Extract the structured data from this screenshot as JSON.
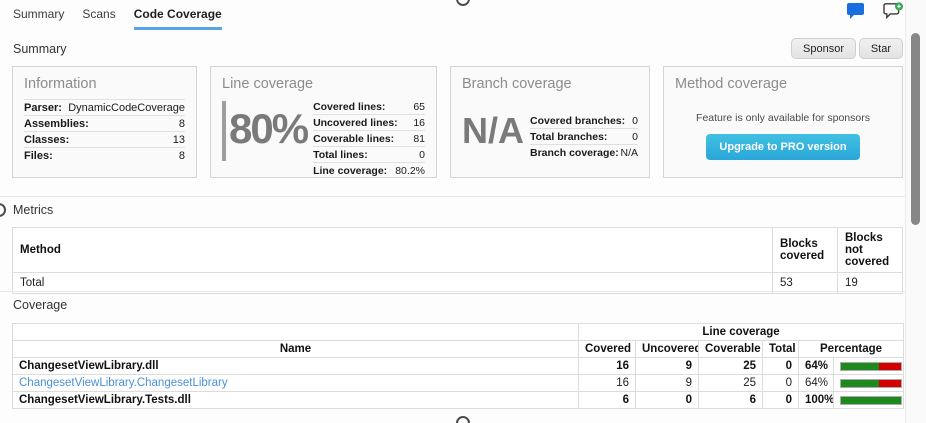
{
  "tabs": {
    "items": [
      {
        "label": "Summary"
      },
      {
        "label": "Scans"
      },
      {
        "label": "Code Coverage"
      }
    ],
    "active_index": 2
  },
  "header": {
    "icons": [
      {
        "name": "chat-filled-icon"
      },
      {
        "name": "chat-add-icon"
      }
    ]
  },
  "summary": {
    "title": "Summary",
    "sponsor_label": "Sponsor",
    "star_label": "Star"
  },
  "cards": {
    "information": {
      "title": "Information",
      "rows": [
        {
          "label": "Parser:",
          "value": "DynamicCodeCoverage"
        },
        {
          "label": "Assemblies:",
          "value": "8"
        },
        {
          "label": "Classes:",
          "value": "13"
        },
        {
          "label": "Files:",
          "value": "8"
        }
      ]
    },
    "line_coverage": {
      "title": "Line coverage",
      "big_value": "80%",
      "rows": [
        {
          "label": "Covered lines:",
          "value": "65"
        },
        {
          "label": "Uncovered lines:",
          "value": "16"
        },
        {
          "label": "Coverable lines:",
          "value": "81"
        },
        {
          "label": "Total lines:",
          "value": "0"
        },
        {
          "label": "Line coverage:",
          "value": "80.2%"
        }
      ]
    },
    "branch_coverage": {
      "title": "Branch coverage",
      "big_value": "N/A",
      "rows": [
        {
          "label": "Covered branches:",
          "value": "0"
        },
        {
          "label": "Total branches:",
          "value": "0"
        },
        {
          "label": "Branch coverage:",
          "value": "N/A"
        }
      ]
    },
    "method_coverage": {
      "title": "Method coverage",
      "message": "Feature is only available for sponsors",
      "button_label": "Upgrade to PRO version"
    }
  },
  "metrics": {
    "title": "Metrics",
    "headers": {
      "method": "Method",
      "blocks_covered": "Blocks covered",
      "blocks_not_covered": "Blocks not covered"
    },
    "total_row": {
      "name": "Total",
      "blocks_covered": "53",
      "blocks_not_covered": "19"
    }
  },
  "coverage": {
    "title": "Coverage",
    "group_header": "Line coverage",
    "headers": {
      "name": "Name",
      "covered": "Covered",
      "uncovered": "Uncovered",
      "coverable": "Coverable",
      "total": "Total",
      "percentage": "Percentage"
    },
    "rows": [
      {
        "name": "ChangesetViewLibrary.dll",
        "covered": "16",
        "uncovered": "9",
        "coverable": "25",
        "total": "0",
        "percentage": "64%",
        "percent": 64
      },
      {
        "name": "ChangesetViewLibrary.ChangesetLibrary",
        "covered": "16",
        "uncovered": "9",
        "coverable": "25",
        "total": "0",
        "percentage": "64%",
        "percent": 64
      },
      {
        "name": "ChangesetViewLibrary.Tests.dll",
        "covered": "6",
        "uncovered": "0",
        "coverable": "6",
        "total": "0",
        "percentage": "100%",
        "percent": 100
      }
    ]
  },
  "colors": {
    "accent_blue": "#57a3e8",
    "link_blue": "#4a90d9",
    "bar_green": "#1e8a1e",
    "bar_red": "#d40000",
    "button_cyan": "#2fb5dc",
    "chat_icon_blue": "#1a6fe0",
    "badge_green": "#34a853"
  }
}
